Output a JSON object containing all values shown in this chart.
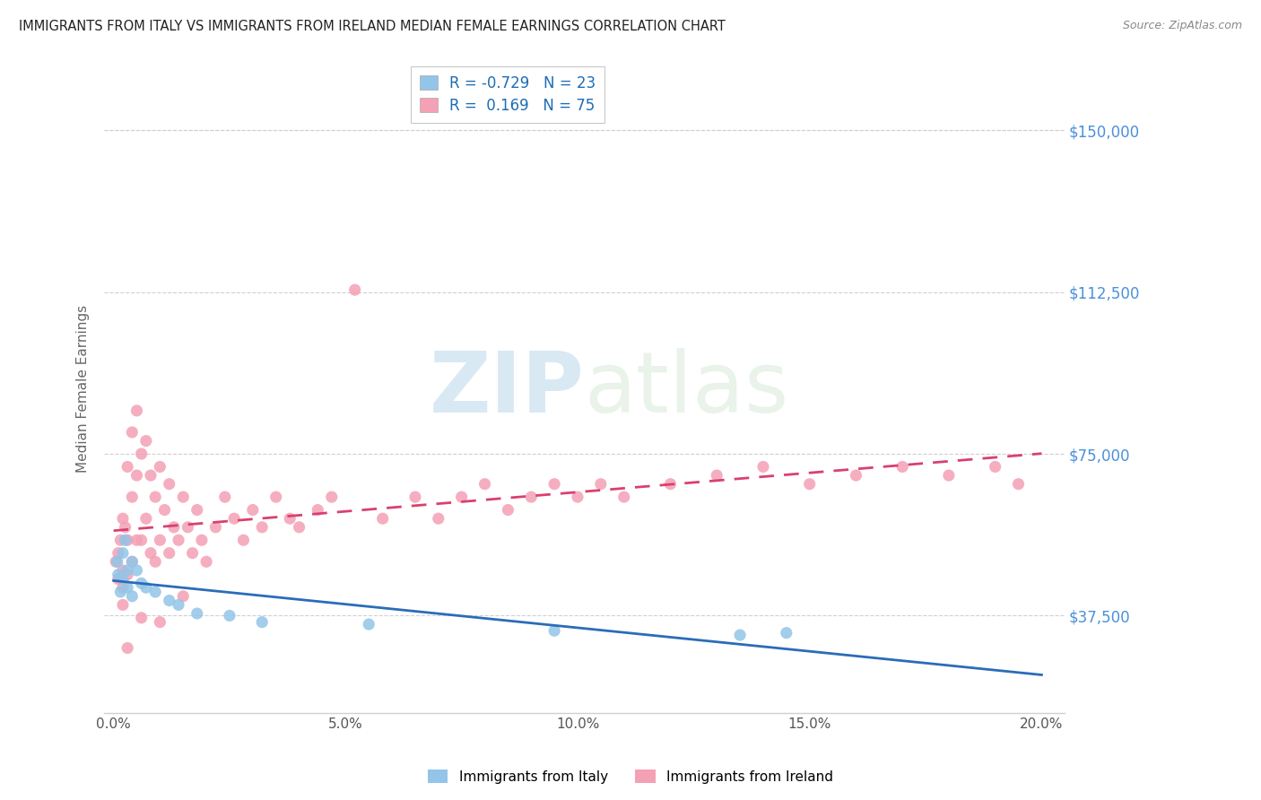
{
  "title": "IMMIGRANTS FROM ITALY VS IMMIGRANTS FROM IRELAND MEDIAN FEMALE EARNINGS CORRELATION CHART",
  "source": "Source: ZipAtlas.com",
  "ylabel": "Median Female Earnings",
  "xlim": [
    -0.002,
    0.205
  ],
  "ylim": [
    15000,
    165000
  ],
  "yticks": [
    37500,
    75000,
    112500,
    150000
  ],
  "ytick_labels": [
    "$37,500",
    "$75,000",
    "$112,500",
    "$150,000"
  ],
  "xticks": [
    0.0,
    0.05,
    0.1,
    0.15,
    0.2
  ],
  "xtick_labels": [
    "0.0%",
    "5.0%",
    "10.0%",
    "15.0%",
    "20.0%"
  ],
  "legend_R_italy": "-0.729",
  "legend_N_italy": "23",
  "legend_R_ireland": "0.169",
  "legend_N_ireland": "75",
  "italy_color": "#92C5E8",
  "ireland_color": "#F4A0B5",
  "italy_line_color": "#2B6CB8",
  "ireland_line_color": "#D94070",
  "watermark_color": "#C8E0F0",
  "grid_color": "#D0D0D0",
  "title_color": "#222222",
  "source_color": "#888888",
  "tick_color": "#4A90D9",
  "ylabel_color": "#666666",
  "xtick_color": "#555555",
  "italy_x": [
    0.0008,
    0.001,
    0.0015,
    0.002,
    0.002,
    0.0025,
    0.003,
    0.003,
    0.004,
    0.004,
    0.005,
    0.006,
    0.007,
    0.009,
    0.012,
    0.014,
    0.018,
    0.025,
    0.032,
    0.055,
    0.095,
    0.135,
    0.145
  ],
  "italy_y": [
    50000,
    47000,
    43000,
    52000,
    46000,
    55000,
    48000,
    44000,
    42000,
    50000,
    48000,
    45000,
    44000,
    43000,
    41000,
    40000,
    38000,
    37500,
    36000,
    35500,
    34000,
    33000,
    33500
  ],
  "ireland_x": [
    0.0005,
    0.001,
    0.001,
    0.0015,
    0.002,
    0.002,
    0.002,
    0.0025,
    0.003,
    0.003,
    0.003,
    0.004,
    0.004,
    0.004,
    0.005,
    0.005,
    0.005,
    0.006,
    0.006,
    0.007,
    0.007,
    0.008,
    0.008,
    0.009,
    0.009,
    0.01,
    0.01,
    0.011,
    0.012,
    0.012,
    0.013,
    0.014,
    0.015,
    0.016,
    0.017,
    0.018,
    0.019,
    0.02,
    0.022,
    0.024,
    0.026,
    0.028,
    0.03,
    0.032,
    0.035,
    0.038,
    0.04,
    0.044,
    0.047,
    0.052,
    0.058,
    0.065,
    0.07,
    0.075,
    0.08,
    0.085,
    0.09,
    0.095,
    0.1,
    0.105,
    0.11,
    0.12,
    0.13,
    0.14,
    0.15,
    0.16,
    0.17,
    0.18,
    0.19,
    0.195,
    0.002,
    0.003,
    0.006,
    0.01,
    0.015
  ],
  "ireland_y": [
    50000,
    52000,
    46000,
    55000,
    60000,
    48000,
    44000,
    58000,
    72000,
    55000,
    47000,
    80000,
    65000,
    50000,
    85000,
    70000,
    55000,
    75000,
    55000,
    78000,
    60000,
    70000,
    52000,
    65000,
    50000,
    72000,
    55000,
    62000,
    68000,
    52000,
    58000,
    55000,
    65000,
    58000,
    52000,
    62000,
    55000,
    50000,
    58000,
    65000,
    60000,
    55000,
    62000,
    58000,
    65000,
    60000,
    58000,
    62000,
    65000,
    113000,
    60000,
    65000,
    60000,
    65000,
    68000,
    62000,
    65000,
    68000,
    65000,
    68000,
    65000,
    68000,
    70000,
    72000,
    68000,
    70000,
    72000,
    70000,
    72000,
    68000,
    40000,
    30000,
    37000,
    36000,
    42000
  ]
}
